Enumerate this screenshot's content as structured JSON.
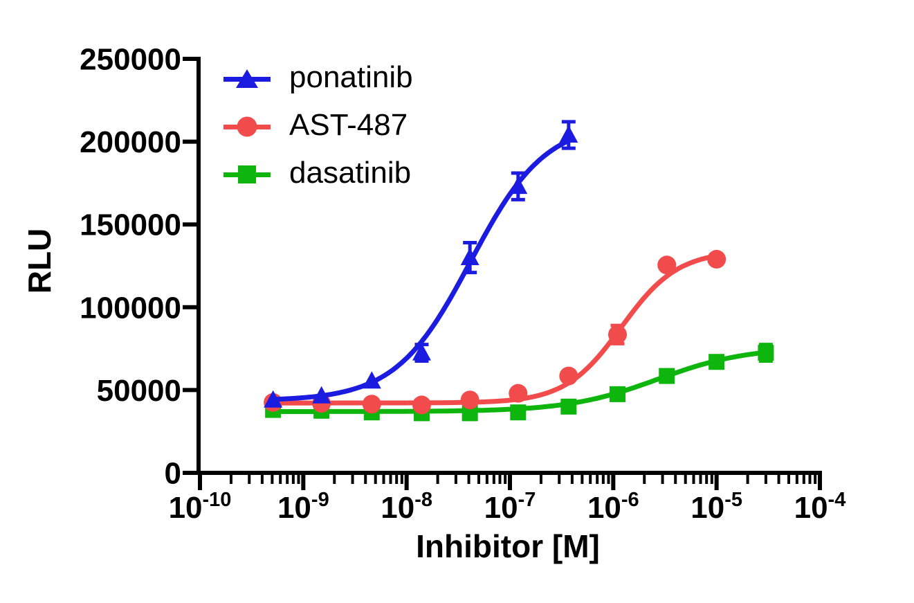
{
  "figure": {
    "background": "#ffffff",
    "text_color": "#000000"
  },
  "chart_data": {
    "type": "line",
    "subtype": "dose-response sigmoidal fit with markers and error bars (GraphPad-Prism style)",
    "title": "",
    "xlabel": "Inhibitor [M]",
    "ylabel": "RLU",
    "x_scale": "log10",
    "x_tick_exponents": [
      -10,
      -9,
      -8,
      -7,
      -6,
      -5,
      -4
    ],
    "x_minor_ticks": "log subdivisions 2-9 within each decade",
    "xlim_exponents": [
      -10,
      -4
    ],
    "yticks": [
      0,
      50000,
      100000,
      150000,
      200000,
      250000
    ],
    "ylim": [
      0,
      250000
    ],
    "grid": false,
    "legend_position": "inside top-left",
    "series": [
      {
        "name": "ponatinib",
        "color": "#1c1ce0",
        "marker": "triangle-up",
        "points": [
          {
            "conc": 5.1e-10,
            "rlu": 44000,
            "err": 0
          },
          {
            "conc": 1.5e-09,
            "rlu": 46500,
            "err": 0
          },
          {
            "conc": 4.6e-09,
            "rlu": 55500,
            "err": 0
          },
          {
            "conc": 1.4e-08,
            "rlu": 72500,
            "err": 5000
          },
          {
            "conc": 4.1e-08,
            "rlu": 130000,
            "err": 9000
          },
          {
            "conc": 1.2e-07,
            "rlu": 173000,
            "err": 8000
          },
          {
            "conc": 3.7e-07,
            "rlu": 204000,
            "err": 8000
          }
        ],
        "fit": {
          "bottom": 43500,
          "top": 212000,
          "log_ec50": -7.38,
          "hill": 1.2
        }
      },
      {
        "name": "AST-487",
        "color": "#f24b4b",
        "marker": "circle",
        "points": [
          {
            "conc": 5.1e-10,
            "rlu": 42500,
            "err": 0
          },
          {
            "conc": 1.5e-09,
            "rlu": 42000,
            "err": 0
          },
          {
            "conc": 4.6e-09,
            "rlu": 41500,
            "err": 0
          },
          {
            "conc": 1.4e-08,
            "rlu": 41000,
            "err": 0
          },
          {
            "conc": 4.1e-08,
            "rlu": 44000,
            "err": 0
          },
          {
            "conc": 1.2e-07,
            "rlu": 48000,
            "err": 0
          },
          {
            "conc": 3.7e-07,
            "rlu": 58500,
            "err": 0
          },
          {
            "conc": 1.1e-06,
            "rlu": 83500,
            "err": 5500
          },
          {
            "conc": 3.3e-06,
            "rlu": 125500,
            "err": 0
          },
          {
            "conc": 1e-05,
            "rlu": 129000,
            "err": 0
          }
        ],
        "fit": {
          "bottom": 42200,
          "top": 134000,
          "log_ec50": -5.92,
          "hill": 1.6
        }
      },
      {
        "name": "dasatinib",
        "color": "#0db50d",
        "marker": "square",
        "points": [
          {
            "conc": 5.1e-10,
            "rlu": 38000,
            "err": 0
          },
          {
            "conc": 1.5e-09,
            "rlu": 37500,
            "err": 0
          },
          {
            "conc": 4.6e-09,
            "rlu": 36500,
            "err": 0
          },
          {
            "conc": 1.4e-08,
            "rlu": 36000,
            "err": 0
          },
          {
            "conc": 4.1e-08,
            "rlu": 36000,
            "err": 0
          },
          {
            "conc": 1.2e-07,
            "rlu": 36500,
            "err": 0
          },
          {
            "conc": 3.7e-07,
            "rlu": 40000,
            "err": 0
          },
          {
            "conc": 1.1e-06,
            "rlu": 47500,
            "err": 0
          },
          {
            "conc": 3.3e-06,
            "rlu": 58500,
            "err": 0
          },
          {
            "conc": 1e-05,
            "rlu": 67000,
            "err": 0
          },
          {
            "conc": 3e-05,
            "rlu": 72500,
            "err": 5000
          }
        ],
        "fit": {
          "bottom": 37000,
          "top": 76000,
          "log_ec50": -5.57,
          "hill": 1.0
        }
      }
    ]
  }
}
